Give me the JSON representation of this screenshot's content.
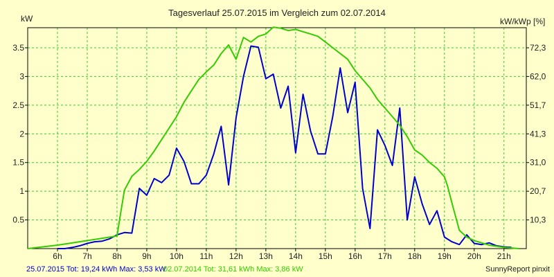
{
  "chart_data": {
    "type": "line",
    "title": "Tagesverlauf 25.07.2015 im Vergleich zum 02.07.2014",
    "ylabel_left": "kW",
    "ylabel_right": "kW/kWp [%]",
    "xlim": [
      5.0,
      21.75
    ],
    "ylim": [
      0,
      3.85
    ],
    "grid": true,
    "x_ticks": [
      {
        "v": 6,
        "label": "6h"
      },
      {
        "v": 7,
        "label": "7h"
      },
      {
        "v": 8,
        "label": "8h"
      },
      {
        "v": 9,
        "label": "9h"
      },
      {
        "v": 10,
        "label": "10h"
      },
      {
        "v": 11,
        "label": "11h"
      },
      {
        "v": 12,
        "label": "12h"
      },
      {
        "v": 13,
        "label": "13h"
      },
      {
        "v": 14,
        "label": "14h"
      },
      {
        "v": 15,
        "label": "15h"
      },
      {
        "v": 16,
        "label": "16h"
      },
      {
        "v": 17,
        "label": "17h"
      },
      {
        "v": 18,
        "label": "18h"
      },
      {
        "v": 19,
        "label": "19h"
      },
      {
        "v": 20,
        "label": "20h"
      },
      {
        "v": 21,
        "label": "21h"
      }
    ],
    "y_ticks_left": [
      {
        "v": 0.5,
        "label": "0.5"
      },
      {
        "v": 1,
        "label": "1"
      },
      {
        "v": 1.5,
        "label": "1.5"
      },
      {
        "v": 2,
        "label": "2"
      },
      {
        "v": 2.5,
        "label": "2.5"
      },
      {
        "v": 3,
        "label": "3"
      },
      {
        "v": 3.5,
        "label": "3.5"
      }
    ],
    "y_ticks_right": [
      {
        "v": 0.5,
        "label": "10,3"
      },
      {
        "v": 1,
        "label": "20,7"
      },
      {
        "v": 1.5,
        "label": "31,0"
      },
      {
        "v": 2,
        "label": "41,3"
      },
      {
        "v": 2.5,
        "label": "51,7"
      },
      {
        "v": 3,
        "label": "62,0"
      },
      {
        "v": 3.5,
        "label": "72,3"
      }
    ],
    "series": [
      {
        "name": "25.07.2015",
        "color": "#0000cc",
        "x": [
          6.0,
          6.25,
          6.5,
          6.75,
          7.0,
          7.25,
          7.5,
          7.75,
          8.0,
          8.25,
          8.5,
          8.75,
          9.0,
          9.25,
          9.5,
          9.75,
          10.0,
          10.25,
          10.5,
          10.75,
          11.0,
          11.25,
          11.5,
          11.75,
          12.0,
          12.25,
          12.5,
          12.75,
          13.0,
          13.25,
          13.5,
          13.75,
          14.0,
          14.25,
          14.5,
          14.75,
          15.0,
          15.25,
          15.5,
          15.75,
          16.0,
          16.25,
          16.5,
          16.75,
          17.0,
          17.25,
          17.5,
          17.75,
          18.0,
          18.25,
          18.5,
          18.75,
          19.0,
          19.25,
          19.5,
          19.75,
          20.0,
          20.25,
          20.5,
          20.75,
          21.0,
          21.25
        ],
        "y": [
          0.0,
          0.0,
          0.02,
          0.05,
          0.09,
          0.12,
          0.13,
          0.17,
          0.24,
          0.28,
          0.27,
          1.05,
          0.93,
          1.22,
          1.15,
          1.28,
          1.75,
          1.52,
          1.13,
          1.13,
          1.28,
          1.65,
          2.13,
          1.11,
          2.28,
          3.0,
          3.53,
          3.51,
          2.96,
          3.04,
          2.45,
          2.83,
          1.67,
          2.69,
          2.05,
          1.65,
          1.65,
          2.31,
          3.15,
          2.37,
          2.9,
          1.05,
          0.35,
          2.07,
          1.8,
          1.45,
          2.45,
          0.5,
          1.25,
          0.78,
          0.42,
          0.66,
          0.2,
          0.12,
          0.07,
          0.24,
          0.09,
          0.07,
          0.1,
          0.05,
          0.03,
          0.02
        ]
      },
      {
        "name": "02.07.2014",
        "color": "#33cc00",
        "x": [
          5.0,
          5.5,
          6.0,
          6.5,
          7.0,
          7.5,
          8.0,
          8.1,
          8.25,
          8.5,
          8.75,
          9.0,
          9.25,
          9.5,
          9.75,
          10.0,
          10.25,
          10.5,
          10.75,
          11.0,
          11.25,
          11.5,
          11.75,
          12.0,
          12.25,
          12.5,
          12.75,
          13.0,
          13.25,
          13.5,
          13.75,
          14.0,
          14.25,
          14.5,
          14.75,
          15.0,
          15.25,
          15.5,
          15.75,
          16.0,
          16.25,
          16.5,
          16.75,
          17.0,
          17.25,
          17.5,
          17.75,
          18.0,
          18.25,
          18.5,
          18.75,
          19.0,
          19.1,
          19.25,
          19.5,
          19.75,
          20.0,
          20.5,
          21.0,
          21.5
        ],
        "y": [
          0.0,
          0.03,
          0.06,
          0.1,
          0.14,
          0.18,
          0.22,
          0.55,
          1.02,
          1.26,
          1.38,
          1.52,
          1.7,
          1.9,
          2.1,
          2.3,
          2.55,
          2.75,
          2.95,
          3.08,
          3.2,
          3.4,
          3.55,
          3.3,
          3.68,
          3.6,
          3.7,
          3.74,
          3.86,
          3.84,
          3.8,
          3.82,
          3.78,
          3.74,
          3.7,
          3.6,
          3.5,
          3.4,
          3.3,
          3.1,
          2.95,
          2.8,
          2.6,
          2.45,
          2.3,
          2.15,
          1.95,
          1.72,
          1.63,
          1.5,
          1.4,
          1.25,
          1.1,
          0.8,
          0.32,
          0.2,
          0.14,
          0.06,
          0.02,
          0.0
        ]
      }
    ]
  },
  "footer": {
    "series1_text": "25.07.2015 Tot: 19,24 kWh Max: 3,53 kW",
    "series2_text": "02.07.2014 Tot: 31,61 kWh Max: 3,86 kW",
    "credit": "SunnyReport pinxit"
  }
}
